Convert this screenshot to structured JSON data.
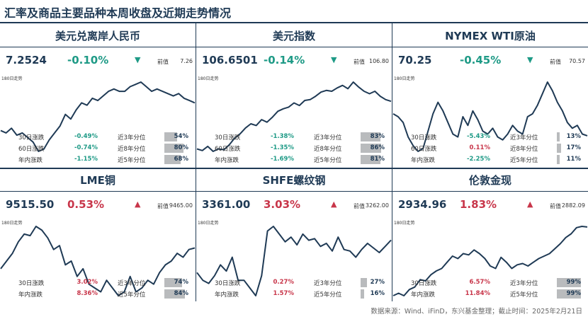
{
  "title": "汇率及商品主要品种本周收盘及近期走势情况",
  "footer": "数据来源：Wind、iFinD，东兴基金整理；截止时间：2025年2月21日",
  "colors": {
    "navy": "#1f3a55",
    "up": "#c8364a",
    "down": "#1e9a86",
    "bar": "#b9bbbd"
  },
  "panels": [
    {
      "name": "美元兑离岸人民币",
      "value": "7.2524",
      "change": "-0.10%",
      "direction": "down",
      "arrow": "▼",
      "prev_label": "前值",
      "prev": "7.26",
      "small_label": "180日走势",
      "stats": [
        {
          "label": "30日涨跌",
          "value": "-0.49%",
          "dir": "down",
          "pct_label": "近3年分位",
          "pct": "54%",
          "pct_num": 54
        },
        {
          "label": "60日涨跌",
          "value": "-0.74%",
          "dir": "down",
          "pct_label": "近8年分位",
          "pct": "80%",
          "pct_num": 80
        },
        {
          "label": "年内涨跌",
          "value": "-1.15%",
          "dir": "down",
          "pct_label": "近5年分位",
          "pct": "68%",
          "pct_num": 68
        }
      ]
    },
    {
      "name": "美元指数",
      "value": "106.6501",
      "change": "-0.14%",
      "direction": "down",
      "arrow": "▼",
      "prev_label": "前值",
      "prev": "106.80",
      "small_label": "180日走势",
      "stats": [
        {
          "label": "30日涨跌",
          "value": "-1.38%",
          "dir": "down",
          "pct_label": "近3年分位",
          "pct": "83%",
          "pct_num": 83
        },
        {
          "label": "60日涨跌",
          "value": "-1.35%",
          "dir": "down",
          "pct_label": "近8年分位",
          "pct": "86%",
          "pct_num": 86
        },
        {
          "label": "年内涨跌",
          "value": "-1.69%",
          "dir": "down",
          "pct_label": "近5年分位",
          "pct": "81%",
          "pct_num": 81
        }
      ]
    },
    {
      "name": "NYMEX WTI原油",
      "value": "70.25",
      "change": "-0.45%",
      "direction": "down",
      "arrow": "▼",
      "prev_label": "前值",
      "prev": "70.57",
      "small_label": "180日走势",
      "stats": [
        {
          "label": "30日涨跌",
          "value": "-5.43%",
          "dir": "down",
          "pct_label": "近3年分位",
          "pct": "13%",
          "pct_num": 13
        },
        {
          "label": "60日涨跌",
          "value": "0.11%",
          "dir": "up",
          "pct_label": "近8年分位",
          "pct": "17%",
          "pct_num": 17
        },
        {
          "label": "年内涨跌",
          "value": "-2.25%",
          "dir": "down",
          "pct_label": "近5年分位",
          "pct": "11%",
          "pct_num": 11
        }
      ]
    },
    {
      "name": "LME铜",
      "value": "9515.50",
      "change": "0.53%",
      "direction": "up",
      "arrow": "▲",
      "prev_label": "前值",
      "prev": "9465.00",
      "small_label": "180日走势",
      "stats": [
        {
          "label": "30日涨跌",
          "value": "3.02%",
          "dir": "up",
          "pct_label": "近3年分位",
          "pct": "74%",
          "pct_num": 74
        },
        {
          "label": "年内涨跌",
          "value": "8.36%",
          "dir": "up",
          "pct_label": "近5年分位",
          "pct": "84%",
          "pct_num": 84
        }
      ]
    },
    {
      "name": "SHFE螺纹钢",
      "value": "3361.00",
      "change": "3.03%",
      "direction": "up",
      "arrow": "▲",
      "prev_label": "前值",
      "prev": "3262.00",
      "small_label": "180日走势",
      "stats": [
        {
          "label": "30日涨跌",
          "value": "0.27%",
          "dir": "up",
          "pct_label": "近3年分位",
          "pct": "27%",
          "pct_num": 27
        },
        {
          "label": "年内涨跌",
          "value": "1.57%",
          "dir": "up",
          "pct_label": "近5年分位",
          "pct": "16%",
          "pct_num": 16
        }
      ]
    },
    {
      "name": "伦敦金现",
      "value": "2934.96",
      "change": "1.83%",
      "direction": "up",
      "arrow": "▲",
      "prev_label": "前值",
      "prev": "2882.09",
      "small_label": "180日走势",
      "stats": [
        {
          "label": "30日涨跌",
          "value": "6.57%",
          "dir": "up",
          "pct_label": "近3年分位",
          "pct": "99%",
          "pct_num": 99
        },
        {
          "label": "年内涨跌",
          "value": "11.84%",
          "dir": "up",
          "pct_label": "近5年分位",
          "pct": "99%",
          "pct_num": 99
        }
      ]
    }
  ],
  "chart_data": [
    {
      "type": "line",
      "series": [
        {
          "values": [
            7.13,
            7.12,
            7.14,
            7.11,
            7.12,
            7.1,
            7.08,
            7.04,
            7.05,
            7.09,
            7.12,
            7.15,
            7.2,
            7.18,
            7.22,
            7.25,
            7.24,
            7.27,
            7.26,
            7.28,
            7.3,
            7.31,
            7.3,
            7.3,
            7.32,
            7.33,
            7.34,
            7.32,
            7.3,
            7.31,
            7.3,
            7.29,
            7.28,
            7.29,
            7.27,
            7.26,
            7.25
          ]
        }
      ]
    },
    {
      "type": "line",
      "series": [
        {
          "values": [
            101.0,
            100.8,
            101.3,
            100.7,
            101.0,
            100.9,
            101.5,
            102.3,
            102.8,
            103.5,
            104.0,
            103.8,
            104.5,
            104.2,
            104.8,
            105.5,
            105.8,
            106.0,
            106.5,
            106.2,
            106.8,
            106.9,
            107.3,
            107.8,
            108.0,
            107.9,
            108.3,
            108.6,
            108.2,
            109.0,
            108.4,
            107.9,
            107.6,
            107.9,
            107.3,
            106.9,
            106.7
          ]
        }
      ]
    },
    {
      "type": "line",
      "series": [
        {
          "values": [
            74.0,
            73.5,
            72.5,
            70.0,
            68.5,
            67.5,
            68.0,
            71.0,
            74.0,
            76.0,
            74.5,
            72.5,
            70.5,
            70.0,
            73.5,
            72.0,
            74.5,
            73.0,
            71.0,
            70.5,
            71.5,
            70.0,
            69.5,
            70.5,
            72.0,
            71.0,
            70.5,
            73.5,
            74.0,
            75.5,
            77.5,
            79.5,
            78.0,
            76.0,
            74.5,
            72.5,
            71.5,
            72.0,
            70.5,
            70.2
          ]
        }
      ]
    },
    {
      "type": "line",
      "series": [
        {
          "values": [
            9250,
            9350,
            9450,
            9600,
            9700,
            9680,
            9800,
            9750,
            9650,
            9500,
            9550,
            9300,
            9350,
            9150,
            9250,
            9050,
            9000,
            8950,
            9100,
            9000,
            8900,
            8950,
            9150,
            8950,
            9000,
            9100,
            9050,
            9200,
            9300,
            9350,
            9450,
            9400,
            9500,
            9520
          ]
        }
      ]
    },
    {
      "type": "line",
      "series": [
        {
          "values": [
            3150,
            3100,
            3080,
            3130,
            3200,
            3160,
            3250,
            3100,
            3100,
            3050,
            3000,
            3130,
            3420,
            3450,
            3400,
            3350,
            3380,
            3330,
            3400,
            3360,
            3370,
            3320,
            3340,
            3290,
            3380,
            3300,
            3290,
            3250,
            3300,
            3340,
            3310,
            3280,
            3320,
            3361
          ]
        }
      ]
    },
    {
      "type": "line",
      "series": [
        {
          "values": [
            2380,
            2400,
            2380,
            2430,
            2450,
            2510,
            2500,
            2550,
            2580,
            2600,
            2650,
            2700,
            2680,
            2720,
            2710,
            2750,
            2720,
            2680,
            2620,
            2600,
            2690,
            2650,
            2600,
            2630,
            2640,
            2620,
            2650,
            2680,
            2700,
            2720,
            2760,
            2800,
            2850,
            2880,
            2930,
            2940,
            2935
          ]
        }
      ]
    }
  ]
}
